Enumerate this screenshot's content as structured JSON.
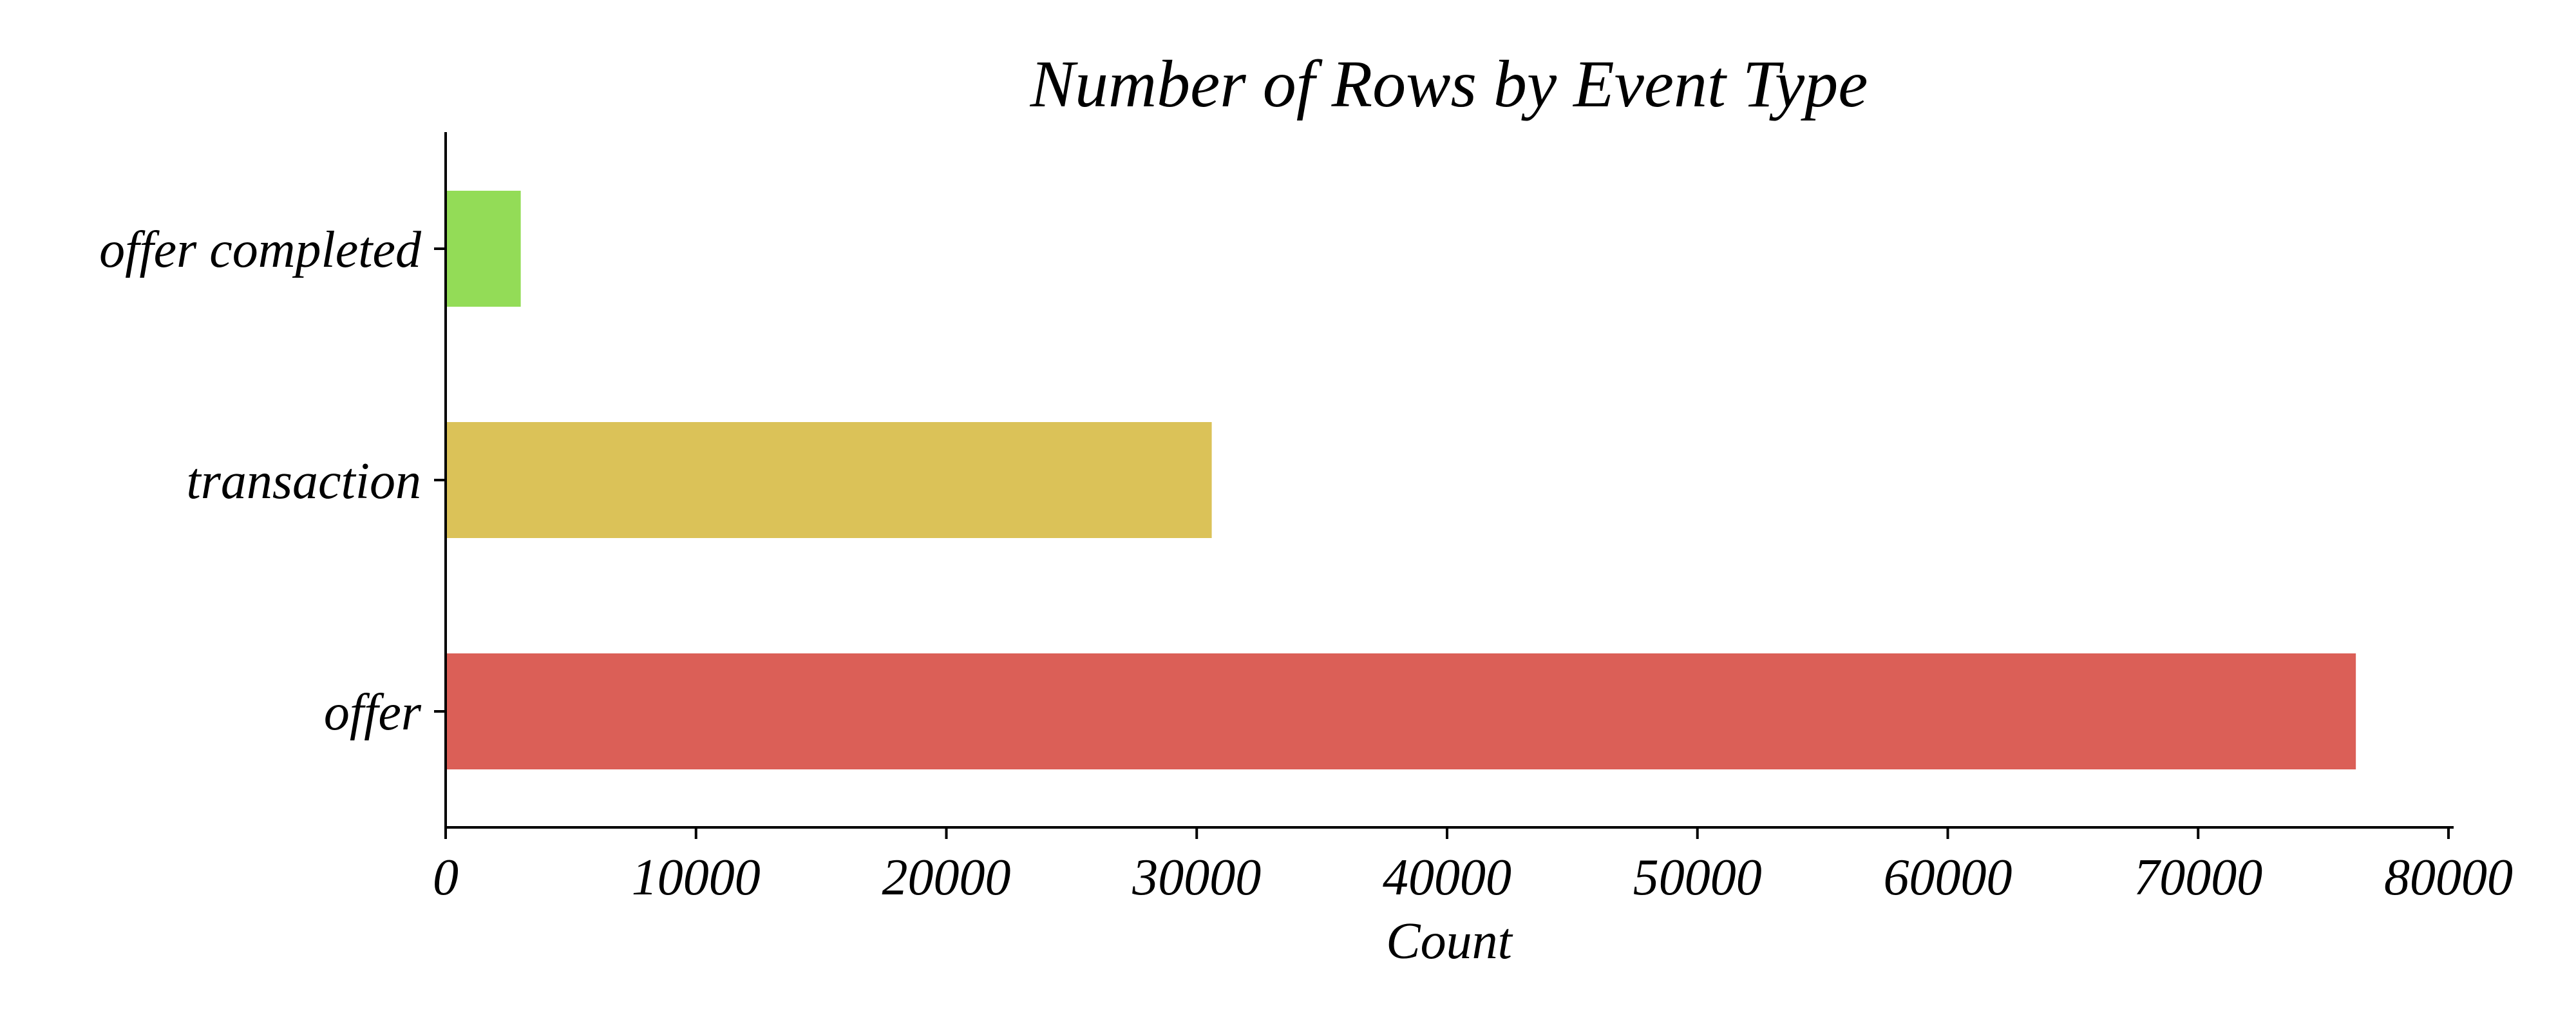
{
  "chart_data": {
    "type": "bar",
    "orientation": "horizontal",
    "title": "Number of Rows by Event Type",
    "xlabel": "Count",
    "ylabel": "",
    "categories": [
      "offer completed",
      "transaction",
      "offer"
    ],
    "values": [
      3000,
      30600,
      76300
    ],
    "colors": [
      "#93dc57",
      "#dbc258",
      "#db5f57"
    ],
    "xlim": [
      0,
      80000
    ],
    "xticks": [
      0,
      10000,
      20000,
      30000,
      40000,
      50000,
      60000,
      70000,
      80000
    ],
    "xtick_labels": [
      "0",
      "10000",
      "20000",
      "30000",
      "40000",
      "50000",
      "60000",
      "70000",
      "80000"
    ],
    "grid": false,
    "legend": "none"
  }
}
